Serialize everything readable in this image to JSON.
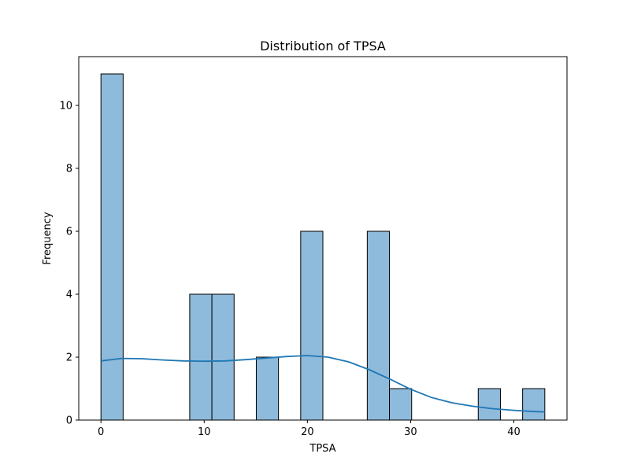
{
  "chart_data": {
    "type": "bar",
    "title": "Distribution of TPSA",
    "xlabel": "TPSA",
    "ylabel": "Frequency",
    "xlim": [
      -2.15,
      45.15
    ],
    "ylim": [
      0,
      11.55
    ],
    "xticks": [
      0,
      10,
      20,
      30,
      40
    ],
    "yticks": [
      0,
      2,
      4,
      6,
      8,
      10
    ],
    "bin_edges": [
      0,
      2.15,
      4.3,
      6.45,
      8.6,
      10.75,
      12.9,
      15.05,
      17.2,
      19.35,
      21.5,
      23.65,
      25.8,
      27.95,
      30.1,
      32.25,
      34.4,
      36.55,
      38.7,
      40.85,
      43.0
    ],
    "counts": [
      11,
      0,
      0,
      0,
      4,
      4,
      0,
      2,
      0,
      6,
      0,
      0,
      6,
      1,
      0,
      0,
      0,
      1,
      0,
      1
    ],
    "kde": {
      "x": [
        0,
        2,
        4,
        6,
        8,
        10,
        12,
        14,
        16,
        18,
        20,
        22,
        24,
        26,
        28,
        30,
        32,
        34,
        36,
        38,
        40,
        42,
        43
      ],
      "y": [
        1.88,
        1.96,
        1.95,
        1.91,
        1.88,
        1.87,
        1.88,
        1.92,
        1.97,
        2.02,
        2.05,
        2.0,
        1.85,
        1.6,
        1.3,
        0.98,
        0.72,
        0.55,
        0.44,
        0.36,
        0.31,
        0.27,
        0.26
      ]
    },
    "grid": false,
    "bar_color": "#8ebadb",
    "edge_color": "#000000",
    "kde_color": "#1f77b4"
  }
}
